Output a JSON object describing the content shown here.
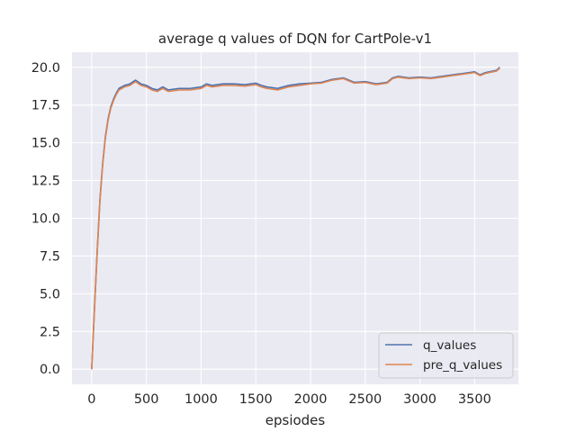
{
  "chart_data": {
    "type": "line",
    "title": "average q values of DQN for CartPole-v1",
    "xlabel": "epsiodes",
    "ylabel": "",
    "xlim": [
      -180,
      3900
    ],
    "ylim": [
      -1.0,
      21.0
    ],
    "xticks": [
      0,
      500,
      1000,
      1500,
      2000,
      2500,
      3000,
      3500
    ],
    "xtick_labels": [
      "0",
      "500",
      "1000",
      "1500",
      "2000",
      "2500",
      "3000",
      "3500"
    ],
    "yticks": [
      0.0,
      2.5,
      5.0,
      7.5,
      10.0,
      12.5,
      15.0,
      17.5,
      20.0
    ],
    "ytick_labels": [
      "0.0",
      "2.5",
      "5.0",
      "7.5",
      "10.0",
      "12.5",
      "15.0",
      "17.5",
      "20.0"
    ],
    "grid": true,
    "background": "#eaeaf2",
    "legend_position": "bottom-right",
    "x": [
      0,
      25,
      50,
      75,
      100,
      125,
      150,
      175,
      200,
      225,
      250,
      275,
      300,
      350,
      400,
      450,
      500,
      550,
      600,
      650,
      700,
      800,
      900,
      1000,
      1050,
      1100,
      1200,
      1300,
      1400,
      1500,
      1550,
      1600,
      1700,
      1750,
      1800,
      1900,
      2000,
      2100,
      2200,
      2300,
      2400,
      2500,
      2600,
      2700,
      2750,
      2800,
      2900,
      3000,
      3100,
      3200,
      3300,
      3400,
      3500,
      3550,
      3600,
      3700,
      3730
    ],
    "series": [
      {
        "name": "q_values",
        "color": "#4c72b0",
        "values": [
          0.0,
          4.0,
          7.8,
          11.2,
          13.6,
          15.4,
          16.6,
          17.4,
          17.9,
          18.3,
          18.6,
          18.7,
          18.8,
          18.9,
          19.15,
          18.9,
          18.8,
          18.6,
          18.5,
          18.7,
          18.5,
          18.6,
          18.6,
          18.7,
          18.9,
          18.8,
          18.9,
          18.9,
          18.85,
          18.95,
          18.8,
          18.7,
          18.6,
          18.7,
          18.8,
          18.9,
          18.95,
          19.0,
          19.2,
          19.3,
          19.0,
          19.05,
          18.9,
          19.0,
          19.3,
          19.4,
          19.3,
          19.35,
          19.3,
          19.4,
          19.5,
          19.6,
          19.7,
          19.5,
          19.65,
          19.8,
          20.0
        ]
      },
      {
        "name": "pre_q_values",
        "color": "#dd8452",
        "values": [
          0.0,
          3.9,
          7.7,
          11.1,
          13.5,
          15.3,
          16.5,
          17.3,
          17.8,
          18.2,
          18.5,
          18.6,
          18.7,
          18.8,
          19.05,
          18.8,
          18.7,
          18.5,
          18.4,
          18.6,
          18.4,
          18.5,
          18.5,
          18.6,
          18.8,
          18.7,
          18.8,
          18.8,
          18.75,
          18.85,
          18.7,
          18.6,
          18.5,
          18.6,
          18.7,
          18.8,
          18.9,
          18.95,
          19.15,
          19.25,
          18.95,
          19.0,
          18.85,
          18.95,
          19.25,
          19.35,
          19.25,
          19.3,
          19.25,
          19.35,
          19.45,
          19.55,
          19.65,
          19.45,
          19.6,
          19.75,
          19.95
        ]
      }
    ]
  }
}
